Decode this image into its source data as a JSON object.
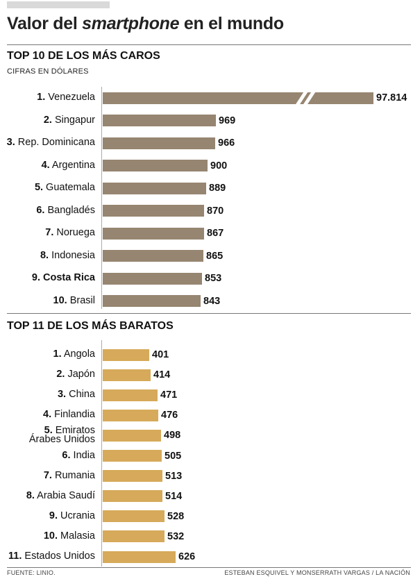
{
  "title": {
    "pre": "Valor del ",
    "em": "smartphone",
    "post": " en el mundo"
  },
  "footer": {
    "source": "FUENTE: LINIO.",
    "credit": "ESTEBAN ESQUIVEL Y MONSERRATH VARGAS / LA NACIÓN"
  },
  "chart_data": [
    {
      "type": "bar",
      "orientation": "horizontal",
      "title": "TOP 10 DE LOS MÁS CAROS",
      "subtitle": "CIFRAS EN DÓLARES",
      "axis_break": true,
      "color": "#968570",
      "ranks": [
        "1.",
        "2.",
        "3.",
        "4.",
        "5.",
        "6.",
        "7.",
        "8.",
        "9.",
        "10."
      ],
      "categories": [
        "Venezuela",
        "Singapur",
        "Rep. Dominicana",
        "Argentina",
        "Guatemala",
        "Bangladés",
        "Noruega",
        "Indonesia",
        "Costa Rica",
        "Brasil"
      ],
      "values": [
        97814,
        969,
        966,
        900,
        889,
        870,
        867,
        865,
        853,
        843
      ],
      "value_labels": [
        "97.814",
        "969",
        "966",
        "900",
        "889",
        "870",
        "867",
        "865",
        "853",
        "843"
      ],
      "highlight": "Costa Rica"
    },
    {
      "type": "bar",
      "orientation": "horizontal",
      "title": "TOP 11 DE LOS MÁS BARATOS",
      "color": "#d6aa5a",
      "ranks": [
        "1.",
        "2.",
        "3.",
        "4.",
        "5.",
        "6.",
        "7.",
        "8.",
        "9.",
        "10.",
        "11."
      ],
      "categories": [
        "Angola",
        "Japón",
        "China",
        "Finlandia",
        "Emiratos Árabes Unidos",
        "India",
        "Rumania",
        "Arabia Saudí",
        "Ucrania",
        "Malasia",
        "Estados Unidos"
      ],
      "values": [
        401,
        414,
        471,
        476,
        498,
        505,
        513,
        514,
        528,
        532,
        626
      ],
      "value_labels": [
        "401",
        "414",
        "471",
        "476",
        "498",
        "505",
        "513",
        "514",
        "528",
        "532",
        "626"
      ]
    }
  ]
}
